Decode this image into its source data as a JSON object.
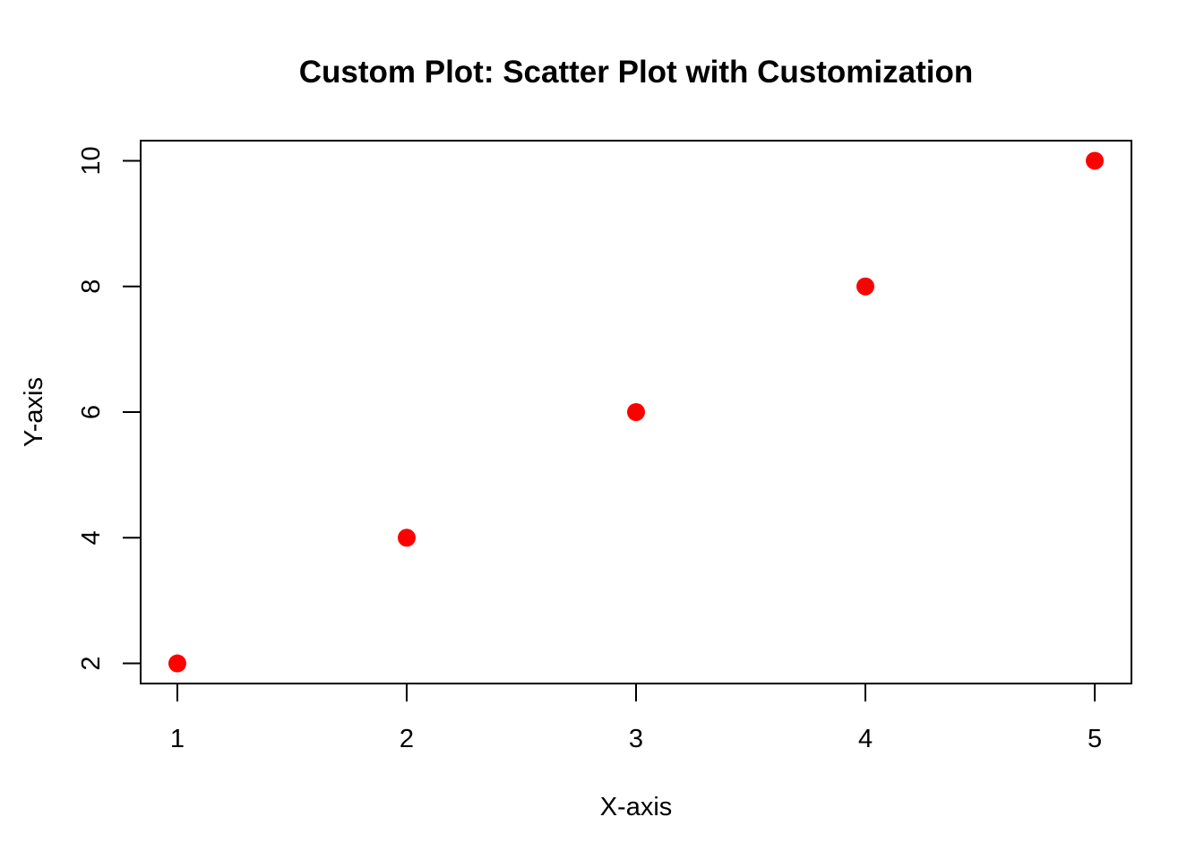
{
  "chart_data": {
    "type": "scatter",
    "title": "Custom Plot:  Scatter Plot with Customization",
    "xlabel": "X-axis",
    "ylabel": "Y-axis",
    "x_ticks": [
      1,
      2,
      3,
      4,
      5
    ],
    "y_ticks": [
      2,
      4,
      6,
      8,
      10
    ],
    "xlim": [
      0.84,
      5.16
    ],
    "ylim": [
      1.68,
      10.32
    ],
    "grid": false,
    "point_color": "#ff0000",
    "series": [
      {
        "x": [
          1,
          2,
          3,
          4,
          5
        ],
        "y": [
          2,
          4,
          6,
          8,
          10
        ]
      }
    ]
  }
}
